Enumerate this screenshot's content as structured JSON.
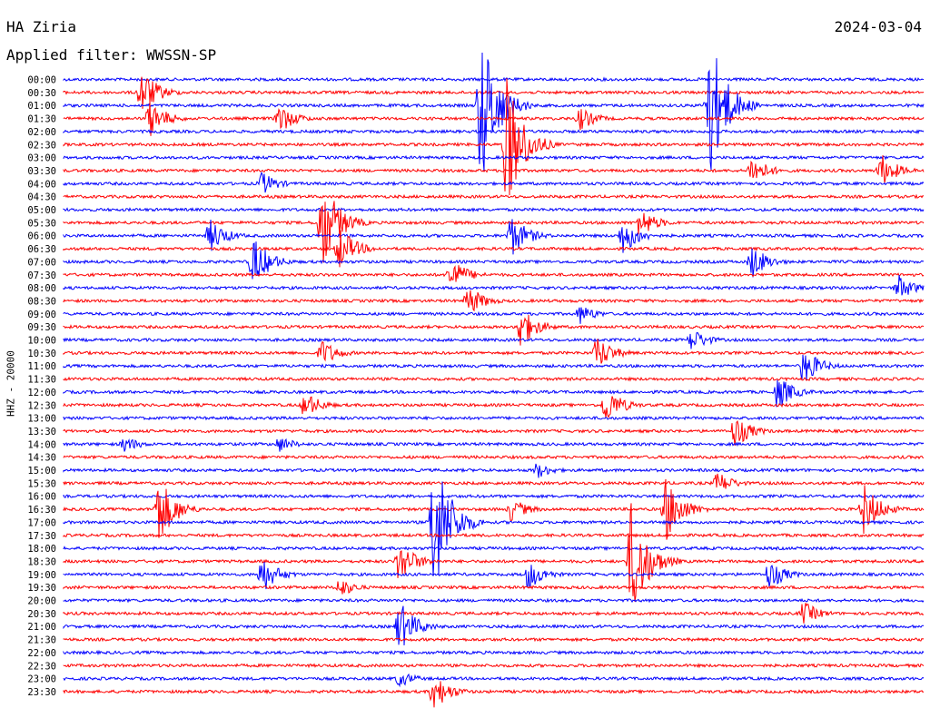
{
  "header": {
    "station": "HA Ziria",
    "date": "2024-03-04",
    "filter": "Applied filter: WWSSN-SP"
  },
  "chart_data": {
    "type": "line",
    "title": "HA Ziria",
    "subtitle": "Applied filter: WWSSN-SP",
    "date": "2024-03-04",
    "ylabel": "HHZ - 20000",
    "row_labels": [
      "00:00",
      "00:30",
      "01:00",
      "01:30",
      "02:00",
      "02:30",
      "03:00",
      "03:30",
      "04:00",
      "04:30",
      "05:00",
      "05:30",
      "06:00",
      "06:30",
      "07:00",
      "07:30",
      "08:00",
      "08:30",
      "09:00",
      "09:30",
      "10:00",
      "10:30",
      "11:00",
      "11:30",
      "12:00",
      "12:30",
      "13:00",
      "13:30",
      "14:00",
      "14:30",
      "15:00",
      "15:30",
      "16:00",
      "16:30",
      "17:00",
      "17:30",
      "18:00",
      "18:30",
      "19:00",
      "19:30",
      "20:00",
      "20:30",
      "21:00",
      "21:30",
      "22:00",
      "22:30",
      "23:00",
      "23:30"
    ],
    "colors": [
      "#0000ff",
      "#ff0000"
    ],
    "events": [
      {
        "row": 1,
        "pos": 0.09,
        "amp": 28
      },
      {
        "row": 3,
        "pos": 0.1,
        "amp": 22
      },
      {
        "row": 3,
        "pos": 0.25,
        "amp": 18
      },
      {
        "row": 2,
        "pos": 0.485,
        "amp": 95
      },
      {
        "row": 5,
        "pos": 0.515,
        "amp": 80
      },
      {
        "row": 2,
        "pos": 0.75,
        "amp": 90
      },
      {
        "row": 3,
        "pos": 0.6,
        "amp": 14
      },
      {
        "row": 7,
        "pos": 0.8,
        "amp": 18
      },
      {
        "row": 7,
        "pos": 0.95,
        "amp": 20
      },
      {
        "row": 8,
        "pos": 0.23,
        "amp": 14
      },
      {
        "row": 11,
        "pos": 0.3,
        "amp": 55
      },
      {
        "row": 12,
        "pos": 0.17,
        "amp": 20
      },
      {
        "row": 13,
        "pos": 0.32,
        "amp": 26
      },
      {
        "row": 14,
        "pos": 0.22,
        "amp": 30
      },
      {
        "row": 12,
        "pos": 0.65,
        "amp": 22
      },
      {
        "row": 11,
        "pos": 0.67,
        "amp": 18
      },
      {
        "row": 12,
        "pos": 0.52,
        "amp": 25
      },
      {
        "row": 14,
        "pos": 0.8,
        "amp": 20
      },
      {
        "row": 15,
        "pos": 0.45,
        "amp": 20
      },
      {
        "row": 17,
        "pos": 0.47,
        "amp": 18
      },
      {
        "row": 16,
        "pos": 0.97,
        "amp": 16
      },
      {
        "row": 19,
        "pos": 0.53,
        "amp": 25
      },
      {
        "row": 18,
        "pos": 0.6,
        "amp": 12
      },
      {
        "row": 20,
        "pos": 0.73,
        "amp": 14
      },
      {
        "row": 21,
        "pos": 0.3,
        "amp": 16
      },
      {
        "row": 21,
        "pos": 0.62,
        "amp": 20
      },
      {
        "row": 22,
        "pos": 0.86,
        "amp": 22
      },
      {
        "row": 24,
        "pos": 0.83,
        "amp": 20
      },
      {
        "row": 25,
        "pos": 0.28,
        "amp": 16
      },
      {
        "row": 25,
        "pos": 0.63,
        "amp": 22
      },
      {
        "row": 27,
        "pos": 0.78,
        "amp": 20
      },
      {
        "row": 28,
        "pos": 0.07,
        "amp": 10
      },
      {
        "row": 28,
        "pos": 0.25,
        "amp": 10
      },
      {
        "row": 30,
        "pos": 0.55,
        "amp": 10
      },
      {
        "row": 31,
        "pos": 0.76,
        "amp": 14
      },
      {
        "row": 33,
        "pos": 0.11,
        "amp": 40
      },
      {
        "row": 34,
        "pos": 0.43,
        "amp": 90
      },
      {
        "row": 33,
        "pos": 0.7,
        "amp": 38
      },
      {
        "row": 33,
        "pos": 0.52,
        "amp": 14
      },
      {
        "row": 33,
        "pos": 0.93,
        "amp": 30
      },
      {
        "row": 37,
        "pos": 0.39,
        "amp": 25
      },
      {
        "row": 37,
        "pos": 0.66,
        "amp": 70
      },
      {
        "row": 38,
        "pos": 0.23,
        "amp": 22
      },
      {
        "row": 38,
        "pos": 0.54,
        "amp": 18
      },
      {
        "row": 38,
        "pos": 0.82,
        "amp": 18
      },
      {
        "row": 39,
        "pos": 0.32,
        "amp": 12
      },
      {
        "row": 41,
        "pos": 0.86,
        "amp": 14
      },
      {
        "row": 42,
        "pos": 0.39,
        "amp": 30
      },
      {
        "row": 46,
        "pos": 0.39,
        "amp": 10
      },
      {
        "row": 47,
        "pos": 0.43,
        "amp": 22
      }
    ]
  }
}
